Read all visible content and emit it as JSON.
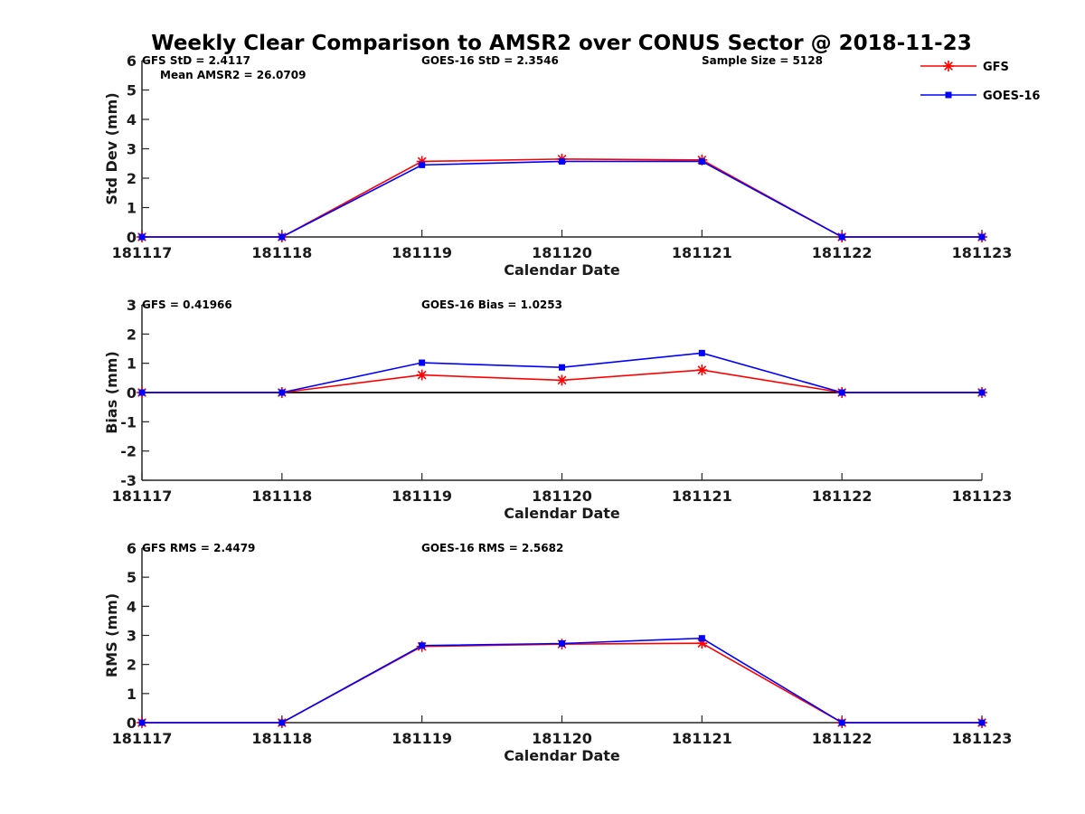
{
  "figure": {
    "title": "Weekly Clear Comparison to AMSR2 over CONUS Sector @ 2018-11-23"
  },
  "legend": {
    "position": "top-right",
    "entries": [
      {
        "name": "GFS",
        "color": "#ff0000",
        "marker": "star"
      },
      {
        "name": "GOES-16",
        "color": "#0000ff",
        "marker": "square"
      }
    ]
  },
  "chart_data": [
    {
      "type": "line",
      "id": "std",
      "xlabel": "Calendar Date",
      "ylabel": "Std Dev (mm)",
      "categories": [
        "181117",
        "181118",
        "181119",
        "181120",
        "181121",
        "181122",
        "181123"
      ],
      "ylim": [
        0,
        6
      ],
      "yticks": [
        "0",
        "1",
        "2",
        "3",
        "4",
        "5",
        "6"
      ],
      "zero_line": false,
      "series": [
        {
          "name": "GFS",
          "color": "#ff0000",
          "marker": "star",
          "values": [
            0,
            0,
            2.57,
            2.65,
            2.62,
            0,
            0
          ]
        },
        {
          "name": "GOES-16",
          "color": "#0000ff",
          "marker": "square",
          "values": [
            0,
            0,
            2.45,
            2.57,
            2.57,
            0,
            0
          ]
        }
      ],
      "annotations": {
        "left": "GFS StD = 2.4117",
        "left2": "Mean AMSR2 = 26.0709",
        "middle": "GOES-16 StD = 2.3546",
        "right": "Sample Size = 5128"
      }
    },
    {
      "type": "line",
      "id": "bias",
      "xlabel": "Calendar Date",
      "ylabel": "Bias (mm)",
      "categories": [
        "181117",
        "181118",
        "181119",
        "181120",
        "181121",
        "181122",
        "181123"
      ],
      "ylim": [
        -3,
        3
      ],
      "yticks": [
        "-3",
        "-2",
        "-1",
        "0",
        "1",
        "2",
        "3"
      ],
      "zero_line": true,
      "series": [
        {
          "name": "GFS",
          "color": "#ff0000",
          "marker": "star",
          "values": [
            0,
            0,
            0.6,
            0.42,
            0.77,
            0,
            0
          ]
        },
        {
          "name": "GOES-16",
          "color": "#0000ff",
          "marker": "square",
          "values": [
            0,
            0,
            1.02,
            0.86,
            1.35,
            0,
            0
          ]
        }
      ],
      "annotations": {
        "left": "GFS = 0.41966",
        "middle": "GOES-16 Bias  = 1.0253"
      }
    },
    {
      "type": "line",
      "id": "rms",
      "xlabel": "Calendar Date",
      "ylabel": "RMS (mm)",
      "categories": [
        "181117",
        "181118",
        "181119",
        "181120",
        "181121",
        "181122",
        "181123"
      ],
      "ylim": [
        0,
        6
      ],
      "yticks": [
        "0",
        "1",
        "2",
        "3",
        "4",
        "5",
        "6"
      ],
      "zero_line": false,
      "series": [
        {
          "name": "GFS",
          "color": "#ff0000",
          "marker": "star",
          "values": [
            0,
            0,
            2.62,
            2.7,
            2.73,
            0,
            0
          ]
        },
        {
          "name": "GOES-16",
          "color": "#0000ff",
          "marker": "square",
          "values": [
            0,
            0,
            2.65,
            2.72,
            2.9,
            0,
            0
          ]
        }
      ],
      "annotations": {
        "left": "GFS RMS = 2.4479",
        "middle": "GOES-16 RMS = 2.5682"
      }
    }
  ]
}
